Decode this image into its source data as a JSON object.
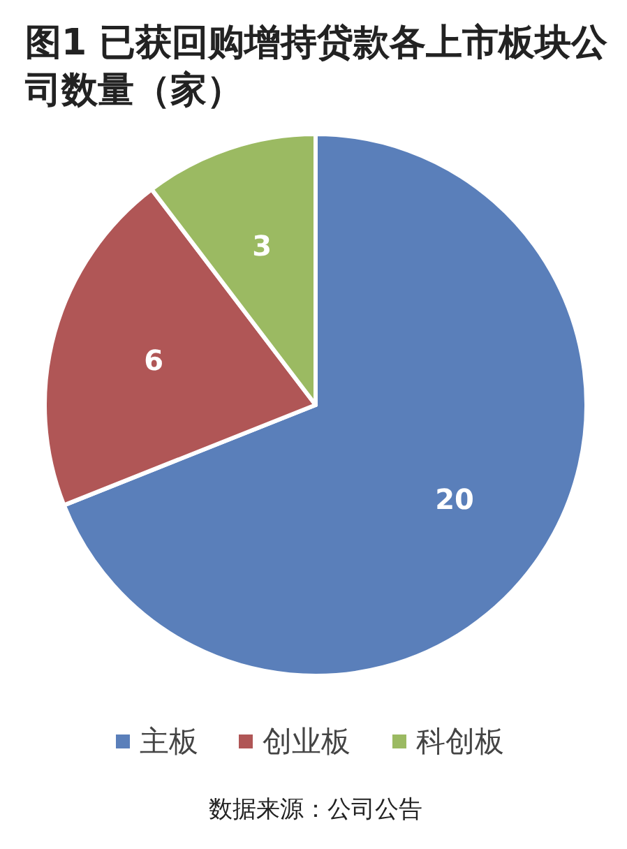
{
  "chart_data": {
    "type": "pie",
    "title": "图1  已获回购增持贷款各上市板块公司数量（家）",
    "categories": [
      "主板",
      "创业板",
      "科创板"
    ],
    "values": [
      20,
      6,
      3
    ],
    "colors": [
      "#5a7fba",
      "#b05656",
      "#9bba62"
    ],
    "data_labels": true,
    "legend": "bottom",
    "annotations": [
      "数据来源：公司公告"
    ]
  }
}
